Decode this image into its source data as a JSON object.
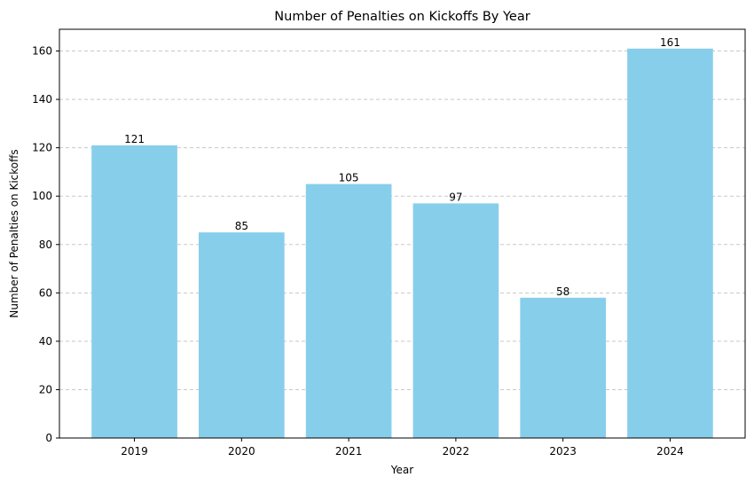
{
  "chart_data": {
    "type": "bar",
    "title": "Number of Penalties on Kickoffs By Year",
    "xlabel": "Year",
    "ylabel": "Number of Penalties on Kickoffs",
    "categories": [
      "2019",
      "2020",
      "2021",
      "2022",
      "2023",
      "2024"
    ],
    "values": [
      121,
      85,
      105,
      97,
      58,
      161
    ],
    "ylim": [
      0,
      169
    ],
    "yticks": [
      0,
      20,
      40,
      60,
      80,
      100,
      120,
      140,
      160
    ],
    "grid": "y-dashed",
    "bar_color": "#87ceeb",
    "grid_color": "#c8c8c8"
  }
}
